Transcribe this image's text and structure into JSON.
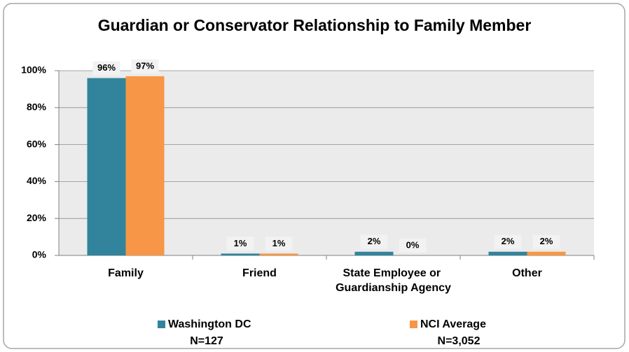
{
  "chart_data": {
    "type": "bar",
    "title": "Guardian or Conservator Relationship to Family Member",
    "categories": [
      "Family",
      "Friend",
      "State Employee or Guardianship Agency",
      "Other"
    ],
    "series": [
      {
        "name": "Washington DC",
        "n": "N=127",
        "color": "#31849b",
        "values": [
          96,
          1,
          2,
          2
        ],
        "value_labels": [
          "96%",
          "1%",
          "2%",
          "2%"
        ]
      },
      {
        "name": "NCI Average",
        "n": "N=3,052",
        "color": "#f79646",
        "values": [
          97,
          1,
          0,
          2
        ],
        "value_labels": [
          "97%",
          "1%",
          "0%",
          "2%"
        ]
      }
    ],
    "ylim": [
      0,
      100
    ],
    "yticks": [
      {
        "value": 0,
        "label": "0%"
      },
      {
        "value": 20,
        "label": "20%"
      },
      {
        "value": 40,
        "label": "40%"
      },
      {
        "value": 60,
        "label": "60%"
      },
      {
        "value": 80,
        "label": "80%"
      },
      {
        "value": 100,
        "label": "100%"
      }
    ],
    "grid": true
  }
}
